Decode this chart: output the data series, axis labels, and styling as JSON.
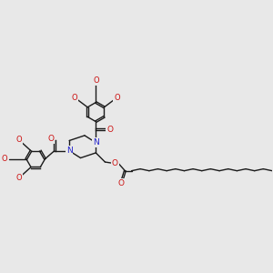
{
  "background_color": "#e8e8e8",
  "bond_color": "#1a1a1a",
  "N_color": "#2222cc",
  "O_color": "#cc1111",
  "bond_lw": 1.0,
  "font_size": 6.5,
  "fig_width": 3.0,
  "fig_height": 3.0,
  "xlim": [
    -1.8,
    11.5
  ],
  "ylim": [
    2.8,
    9.5
  ]
}
